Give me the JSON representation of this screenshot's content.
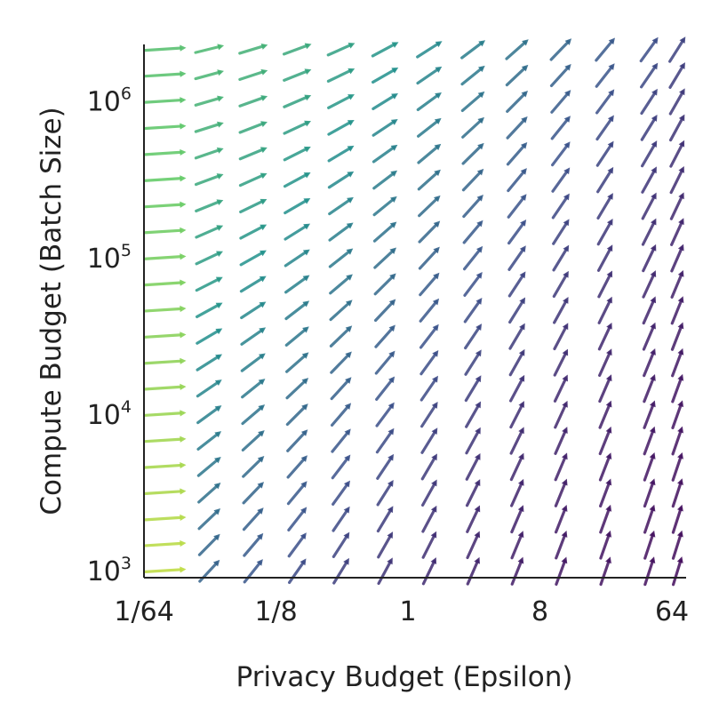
{
  "chart_data": {
    "type": "quiver",
    "title": "",
    "xlabel": "Privacy Budget (Epsilon)",
    "ylabel": "Compute Budget (Batch Size)",
    "x_scale": "log2",
    "y_scale": "log10",
    "xlim": [
      0.0156,
      80
    ],
    "ylim": [
      900,
      2300000
    ],
    "x_ticks": [
      {
        "value": 0.015625,
        "label": "1/64"
      },
      {
        "value": 0.125,
        "label": "1/8"
      },
      {
        "value": 1,
        "label": "1"
      },
      {
        "value": 8,
        "label": "8"
      },
      {
        "value": 64,
        "label": "64"
      }
    ],
    "y_ticks": [
      {
        "value": 1000,
        "mantissa": "10",
        "exponent": "3"
      },
      {
        "value": 10000,
        "mantissa": "10",
        "exponent": "4"
      },
      {
        "value": 100000,
        "mantissa": "10",
        "exponent": "5"
      },
      {
        "value": 1000000,
        "mantissa": "10",
        "exponent": "6"
      }
    ],
    "x_grid": [
      0.022,
      0.044,
      0.088,
      0.176,
      0.351,
      0.703,
      1.41,
      2.81,
      5.62,
      11.2,
      22.5,
      45,
      70
    ],
    "y_grid": [
      1000,
      1470,
      2150,
      3160,
      4640,
      6810,
      10000,
      14700,
      21500,
      31600,
      46400,
      68100,
      100000,
      147000,
      215000,
      316000,
      464000,
      681000,
      1000000,
      1470000,
      2150000
    ],
    "colormap": [
      "#440154",
      "#3b528b",
      "#21918c",
      "#5ec962",
      "#fde725"
    ],
    "grid_lines": false
  }
}
